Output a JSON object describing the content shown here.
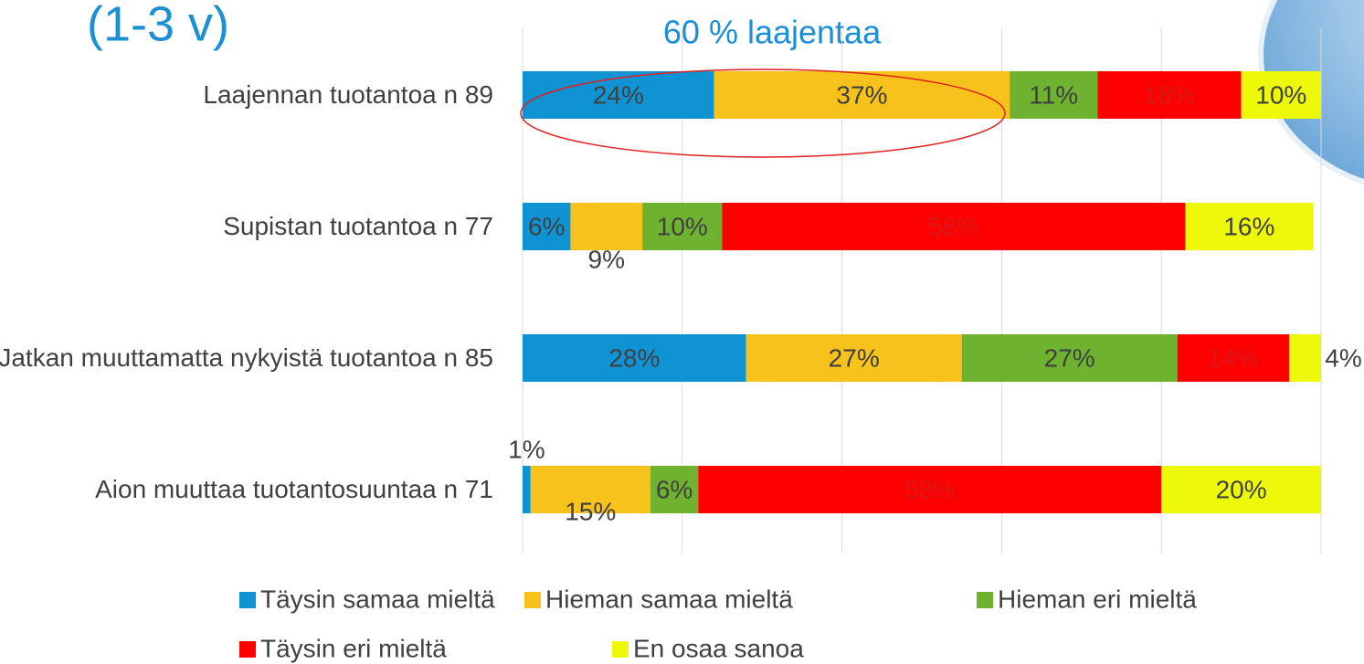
{
  "chart_data": {
    "type": "stacked-bar-horizontal",
    "title": "(1-3 v)",
    "annotation": "60 % laajentaa",
    "categories": [
      "Laajennan tuotantoa n 89",
      "Supistan tuotantoa n 77",
      "Jatkan muuttamatta nykyistä tuotantoa n 85",
      "Aion muuttaa tuotantosuuntaa n 71"
    ],
    "series": [
      {
        "name": "Täysin samaa mieltä",
        "color": "#0f93d2",
        "values": [
          24,
          6,
          28,
          1
        ],
        "value_labels": [
          "24%",
          "6%",
          "28%",
          "1%"
        ]
      },
      {
        "name": "Hieman samaa mieltä",
        "color": "#f8c21c",
        "values": [
          37,
          9,
          27,
          15
        ],
        "value_labels": [
          "37%",
          "9%",
          "27%",
          "15%"
        ]
      },
      {
        "name": "Hieman eri mieltä",
        "color": "#6fb22f",
        "values": [
          11,
          10,
          27,
          6
        ],
        "value_labels": [
          "11%",
          "10%",
          "27%",
          "6%"
        ]
      },
      {
        "name": "Täysin eri mieltä",
        "color": "#ff0000",
        "values": [
          18,
          58,
          14,
          58
        ],
        "value_labels": [
          "18%",
          "58%",
          "14%",
          "58%"
        ]
      },
      {
        "name": "En osaa sanoa",
        "color": "#eef90a",
        "values": [
          10,
          16,
          4,
          20
        ],
        "value_labels": [
          "10%",
          "16%",
          "4%",
          "20%"
        ]
      }
    ],
    "xlim": [
      0,
      100
    ],
    "xticks": [
      0,
      20,
      40,
      60,
      80,
      100
    ],
    "grid": true,
    "legend": "bottom"
  }
}
